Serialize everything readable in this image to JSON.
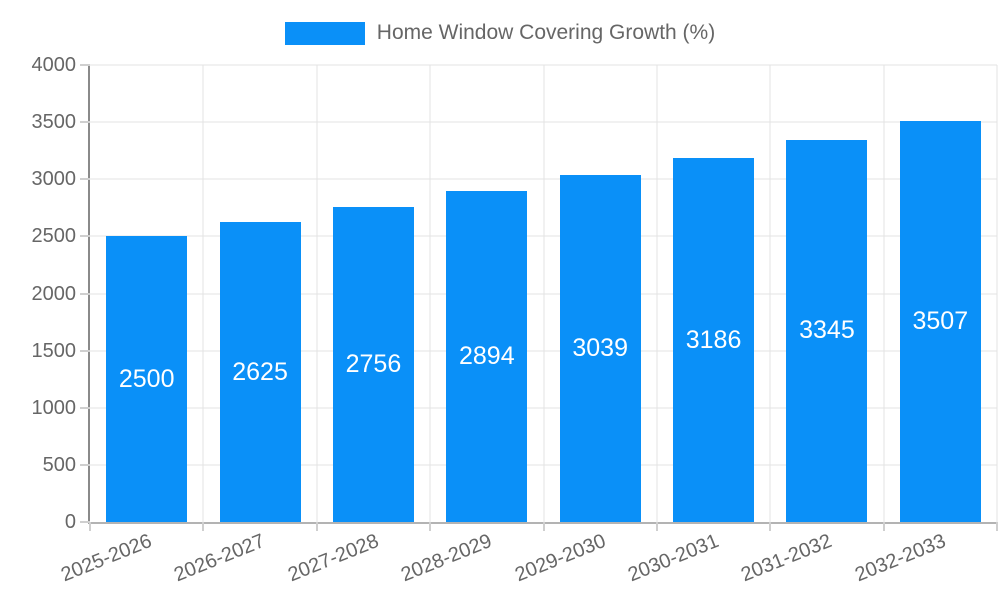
{
  "colors": {
    "bar": "#0a90f8",
    "grid": "#e3e3e3",
    "tick": "#cfcfcf",
    "text": "#666666",
    "bar_label": "#ffffff"
  },
  "chart_data": {
    "type": "bar",
    "title": "Home Window Covering Growth (%)",
    "categories": [
      "2025-2026",
      "2026-2027",
      "2027-2028",
      "2028-2029",
      "2029-2030",
      "2030-2031",
      "2031-2032",
      "2032-2033"
    ],
    "values": [
      2500,
      2625,
      2756,
      2894,
      3039,
      3186,
      3345,
      3507
    ],
    "bar_labels": [
      2500,
      2625,
      2756,
      2894,
      3039,
      3186,
      3345,
      3507
    ],
    "xlabel": "",
    "ylabel": "",
    "ylim": [
      0,
      4000
    ],
    "yticks": [
      0,
      500,
      1000,
      1500,
      2000,
      2500,
      3000,
      3500,
      4000
    ],
    "grid": true,
    "legend_position": "top"
  }
}
